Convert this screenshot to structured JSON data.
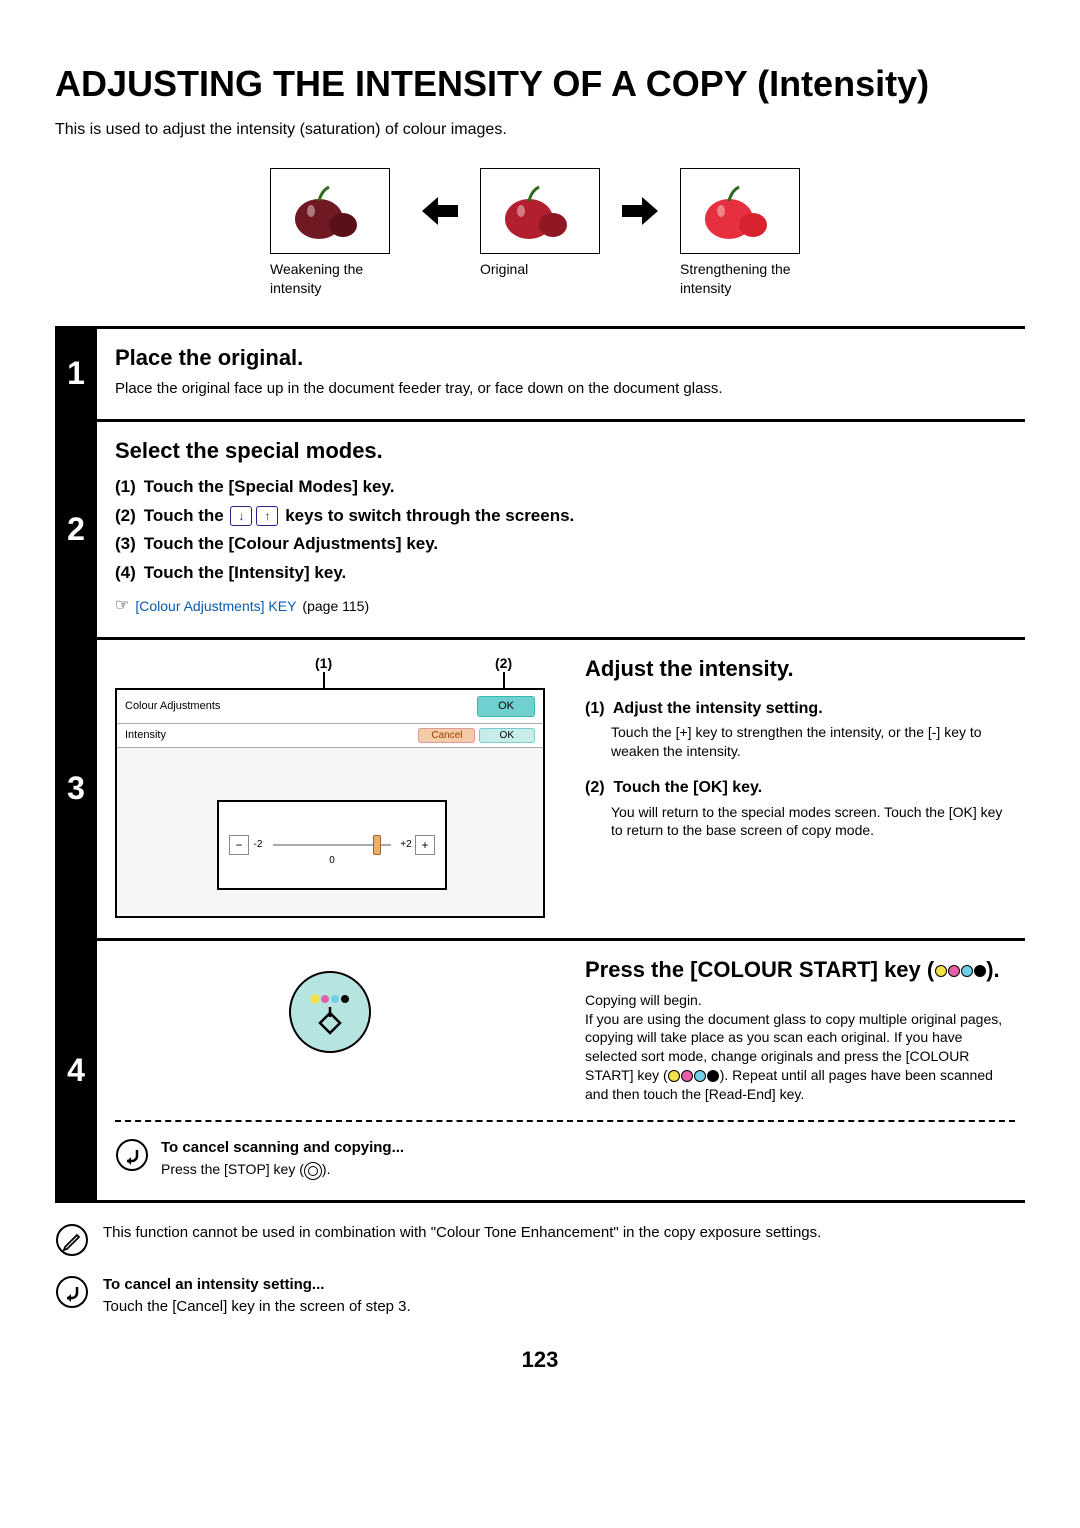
{
  "page": {
    "title": "ADJUSTING THE INTENSITY OF A COPY (Intensity)",
    "intro": "This is used to adjust the intensity (saturation) of colour images.",
    "number": "123"
  },
  "apples": {
    "weak": {
      "caption": "Weakening the intensity",
      "big_color": "#6f1a22",
      "small_color": "#5a1016"
    },
    "orig": {
      "caption": "Original",
      "big_color": "#b21f2e",
      "small_color": "#8f1824"
    },
    "strong": {
      "caption": "Strengthening the intensity",
      "big_color": "#e63040",
      "small_color": "#d8232f"
    },
    "stem_color": "#2f6b1f",
    "highlight_color": "#f2d8d8"
  },
  "arrow": {
    "color": "#000000"
  },
  "step1": {
    "num": "1",
    "heading": "Place the original.",
    "text": "Place the original face up in the document feeder tray, or face down on the document glass."
  },
  "step2": {
    "num": "2",
    "heading": "Select the special modes.",
    "items": {
      "a": {
        "num": "(1)",
        "text": "Touch the [Special Modes] key."
      },
      "b": {
        "num": "(2)",
        "pre": "Touch the",
        "post": "keys to switch through the screens."
      },
      "c": {
        "num": "(3)",
        "text": "Touch the [Colour Adjustments] key."
      },
      "d": {
        "num": "(4)",
        "text": "Touch the [Intensity] key."
      }
    },
    "xref": {
      "icon": "☞",
      "link": "[Colour Adjustments] KEY",
      "page": "(page 115)"
    }
  },
  "step3": {
    "num": "3",
    "callout1": "(1)",
    "callout2": "(2)",
    "panel": {
      "title": "Colour Adjustments",
      "ok_top": "OK",
      "subtitle": "Intensity",
      "cancel": "Cancel",
      "ok_sub": "OK",
      "scale_min": "-2",
      "scale_mid": "0",
      "scale_max": "+2",
      "thumb_percent": 85
    },
    "heading": "Adjust the intensity.",
    "items": {
      "a": {
        "num": "(1)",
        "h": "Adjust the intensity setting.",
        "p": "Touch the [+] key to strengthen the intensity, or the [-] key to weaken the intensity."
      },
      "b": {
        "num": "(2)",
        "h": "Touch the [OK] key.",
        "p": "You will return to the special modes screen. Touch the [OK] key to return to the base screen of copy mode."
      }
    }
  },
  "step4": {
    "num": "4",
    "heading_pre": "Press the [COLOUR START] key (",
    "heading_post": ").",
    "dots": {
      "c1": "#f2e24a",
      "c2": "#e75fa8",
      "c3": "#6fd0e8",
      "c4": "#000000"
    },
    "p1": "Copying will begin.",
    "p2a": "If you are using the document glass to copy multiple original pages, copying will take place as you scan each original. If you have selected sort mode, change originals and press the [COLOUR START] key (",
    "p2b": "). Repeat until all pages have been scanned and then touch the [Read-End] key.",
    "start_btn": {
      "fill": "#b6e4e1",
      "stroke": "#000000",
      "diamond": "#000000"
    },
    "cancel": {
      "h": "To cancel scanning and copying...",
      "p_pre": "Press the [STOP] key (",
      "p_post": ")."
    }
  },
  "notes": {
    "a": {
      "text": "This function cannot be used in combination with \"Colour Tone Enhancement\" in the copy exposure settings."
    },
    "b": {
      "h": "To cancel an intensity setting...",
      "p": "Touch the [Cancel] key in the screen of step 3."
    }
  },
  "icons": {
    "pencil_stroke": "#000000",
    "return_arrow_stroke": "#000000"
  }
}
